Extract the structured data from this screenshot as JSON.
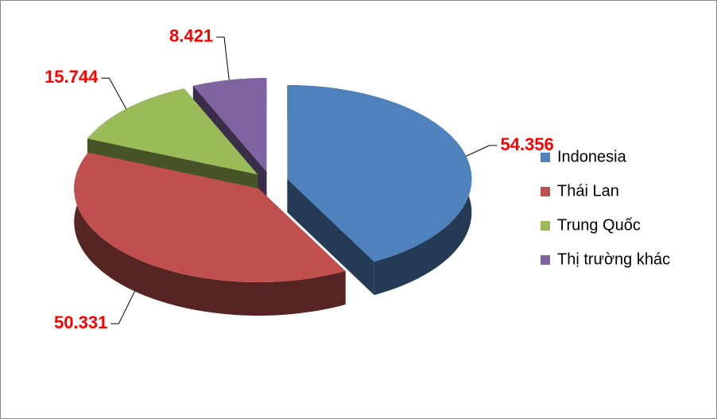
{
  "chart_data": {
    "type": "pie",
    "style": "3d-exploded",
    "categories": [
      "Indonesia",
      "Thái Lan",
      "Trung Quốc",
      "Thị trường khác"
    ],
    "values": [
      54.356,
      50.331,
      15.744,
      8.421
    ],
    "colors": [
      "#4f81bd",
      "#c0504d",
      "#9bbb59",
      "#8064a2"
    ],
    "legend": "right"
  }
}
